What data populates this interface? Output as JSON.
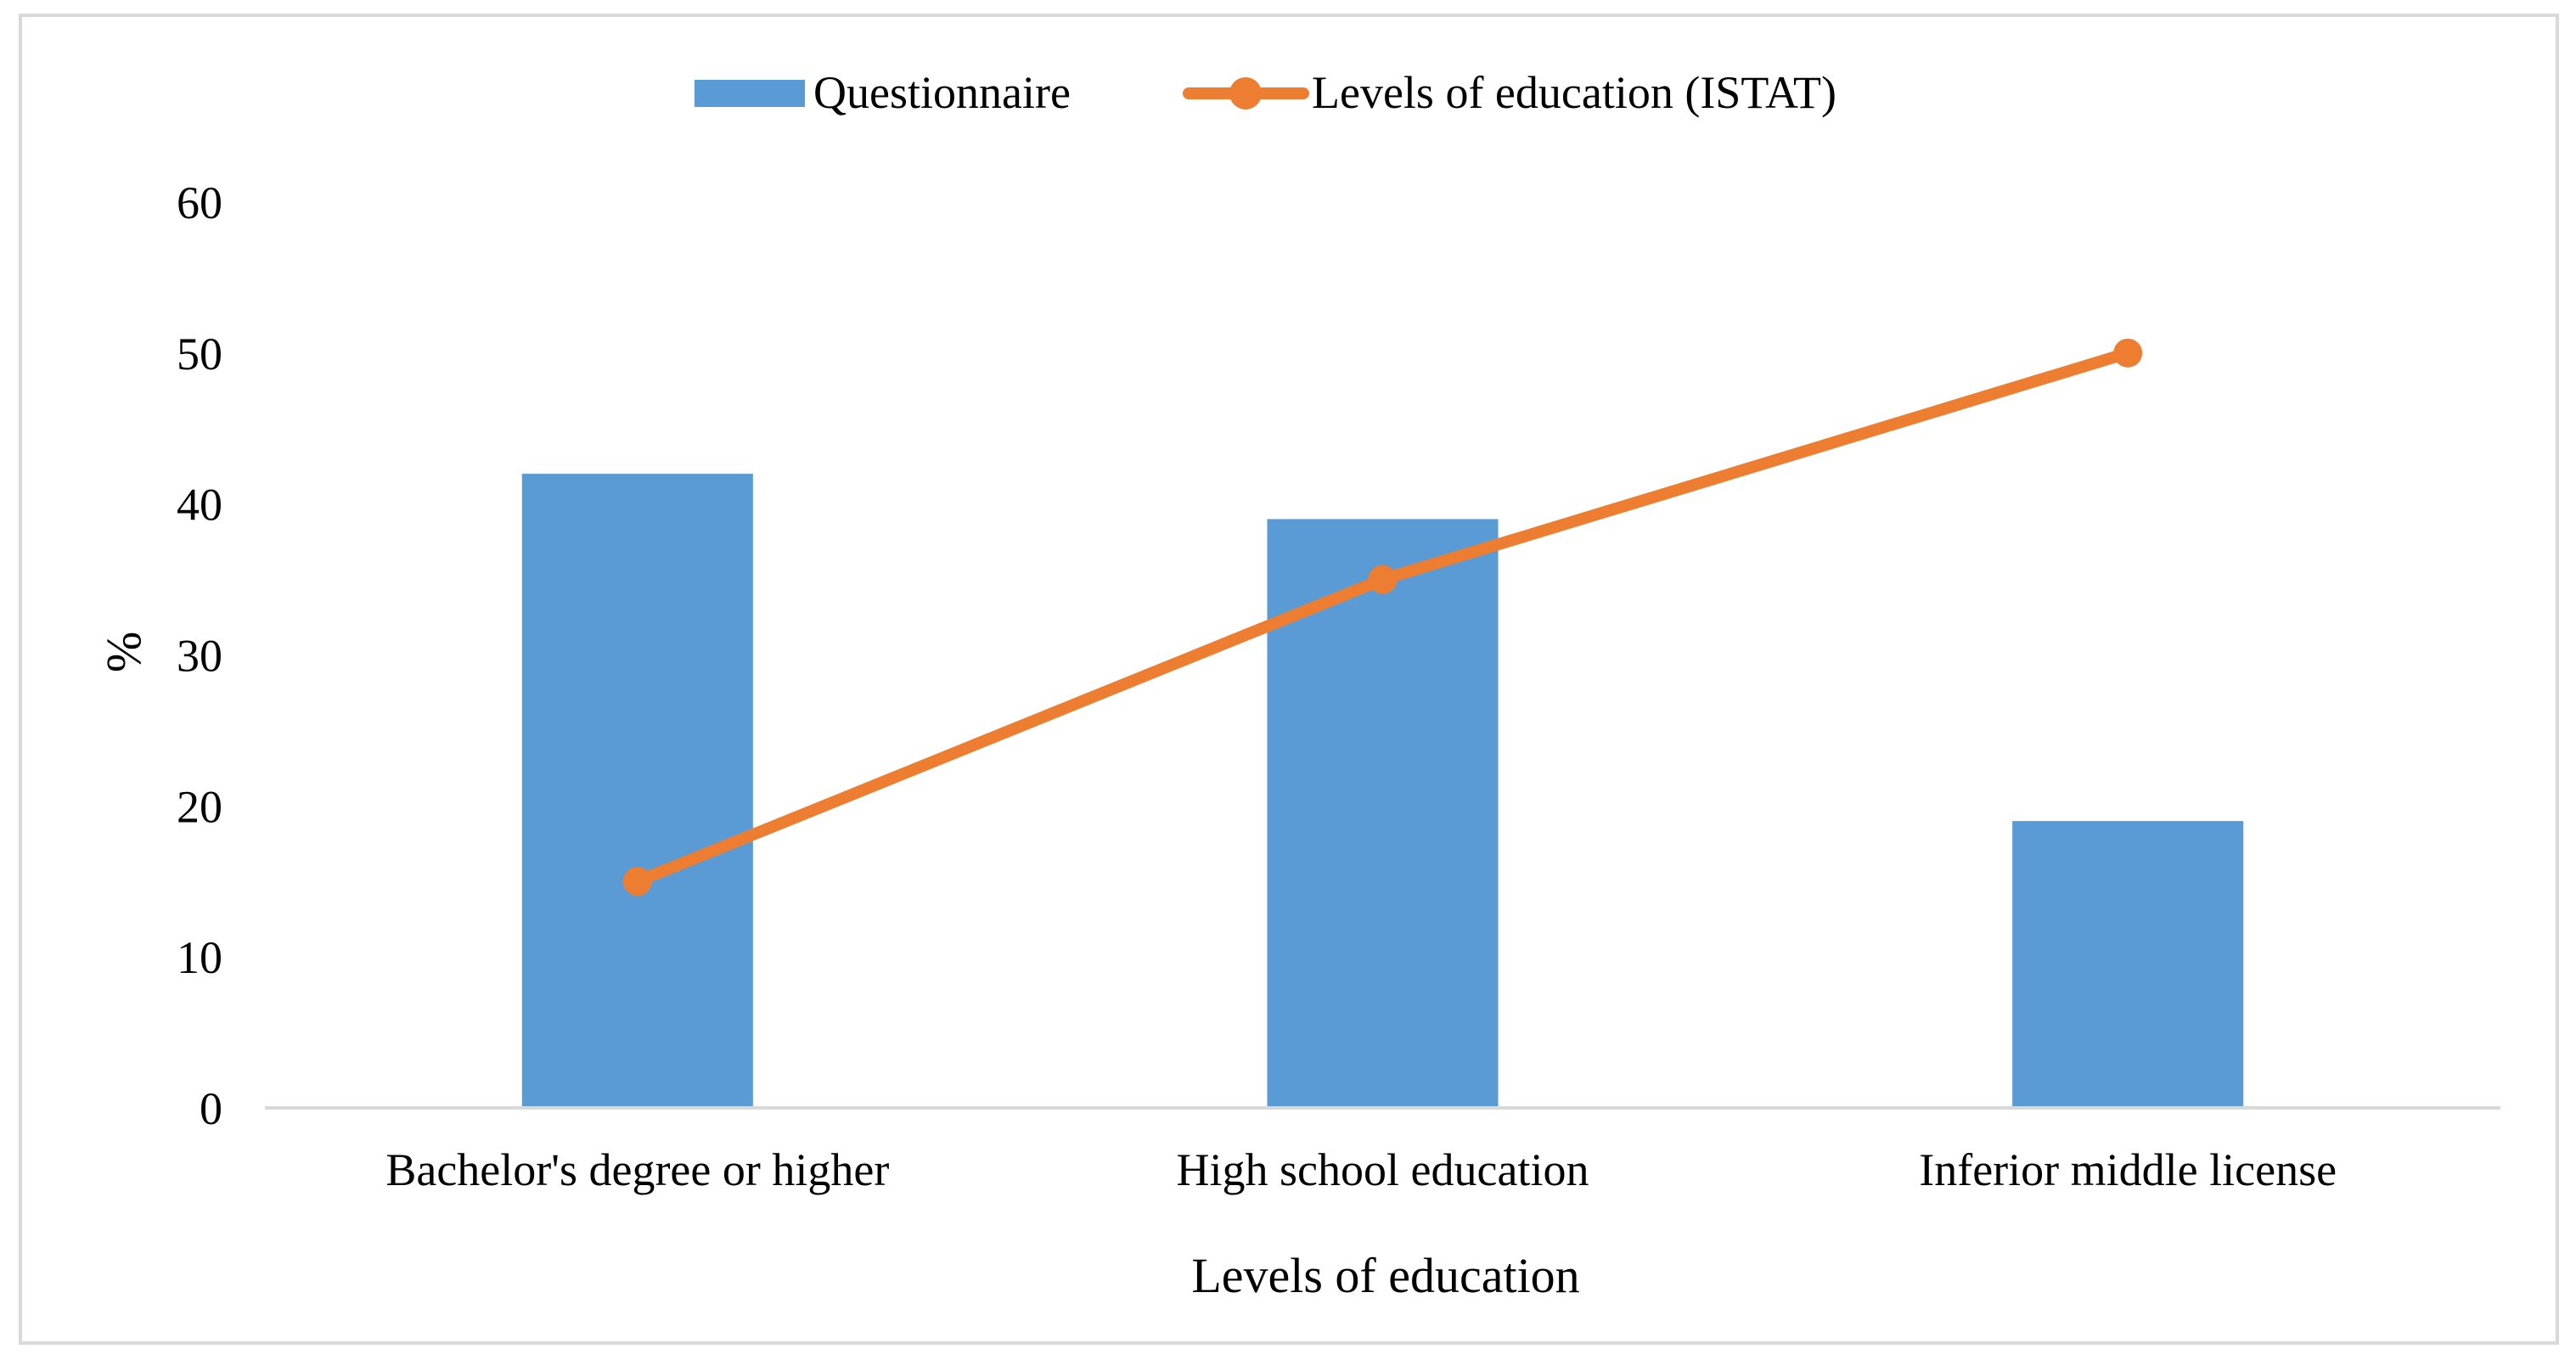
{
  "colors": {
    "bar": "#5b9bd5",
    "line": "#ed7d31",
    "axis": "#d9d9d9",
    "frame": "#d9d9d9",
    "text": "#000000"
  },
  "chart_data": {
    "type": "bar",
    "categories": [
      "Bachelor's degree or higher",
      "High school education",
      "Inferior middle license"
    ],
    "series": [
      {
        "name": "Questionnaire",
        "type": "bar",
        "values": [
          42,
          39,
          19
        ]
      },
      {
        "name": "Levels of education (ISTAT)",
        "type": "line",
        "values": [
          15,
          35,
          50
        ]
      }
    ],
    "xlabel": "Levels of education",
    "ylabel": "%",
    "ylim": [
      0,
      60
    ],
    "yticks": [
      0,
      10,
      20,
      30,
      40,
      50,
      60
    ],
    "grid": false,
    "legend": "top-center"
  }
}
